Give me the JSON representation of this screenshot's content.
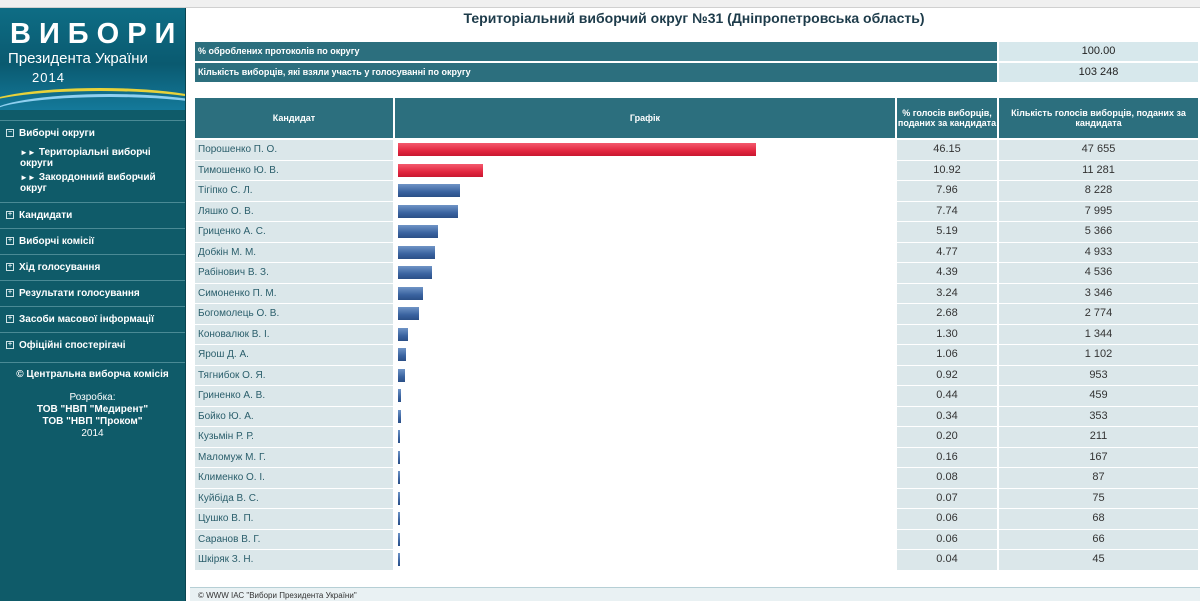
{
  "logo": {
    "title": "ВИБОРИ",
    "subtitle": "Президента України",
    "year": "2014"
  },
  "sidebar": {
    "items": [
      {
        "label": "Виборчі округи",
        "expanded": true,
        "children": [
          "Територіальні виборчі округи",
          "Закордонний виборчий округ"
        ]
      },
      {
        "label": "Кандидати"
      },
      {
        "label": "Виборчі комісії"
      },
      {
        "label": "Хід голосування"
      },
      {
        "label": "Результати голосування"
      },
      {
        "label": "Засоби масової інформації"
      },
      {
        "label": "Офіційні спостерігачі"
      }
    ],
    "copyright": "© Центральна виборча комісія",
    "dev_label": "Розробка:",
    "dev1": "ТОВ \"НВП \"Медирент\"",
    "dev2": "ТОВ \"НВП \"Проком\"",
    "dev_year": "2014"
  },
  "page_title": "Територіальний виборчий округ №31 (Дніпропетровська область)",
  "summary": {
    "protocols_label": "% оброблених протоколів по округу",
    "protocols_value": "100.00",
    "voters_label": "Кількість виборців, які взяли участь у голосуванні по округу",
    "voters_value": "103 248"
  },
  "table": {
    "headers": {
      "candidate": "Кандидат",
      "chart": "Графік",
      "percent": "% голосів виборців, поданих за кандидата",
      "votes": "Кількість голосів виборців, поданих за кандидата"
    },
    "bar_colors": {
      "top": "#e2263f",
      "other": "#3a63a0"
    },
    "rows": [
      {
        "name": "Порошенко П. О.",
        "percent": "46.15",
        "votes": "47 655",
        "share": 46.15,
        "top": true
      },
      {
        "name": "Тимошенко Ю. В.",
        "percent": "10.92",
        "votes": "11 281",
        "share": 10.92,
        "top": true
      },
      {
        "name": "Тігіпко С. Л.",
        "percent": "7.96",
        "votes": "8 228",
        "share": 7.96
      },
      {
        "name": "Ляшко О. В.",
        "percent": "7.74",
        "votes": "7 995",
        "share": 7.74
      },
      {
        "name": "Гриценко А. С.",
        "percent": "5.19",
        "votes": "5 366",
        "share": 5.19
      },
      {
        "name": "Добкін М. М.",
        "percent": "4.77",
        "votes": "4 933",
        "share": 4.77
      },
      {
        "name": "Рабінович В. З.",
        "percent": "4.39",
        "votes": "4 536",
        "share": 4.39
      },
      {
        "name": "Симоненко П. М.",
        "percent": "3.24",
        "votes": "3 346",
        "share": 3.24
      },
      {
        "name": "Богомолець О. В.",
        "percent": "2.68",
        "votes": "2 774",
        "share": 2.68
      },
      {
        "name": "Коновалюк В. І.",
        "percent": "1.30",
        "votes": "1 344",
        "share": 1.3
      },
      {
        "name": "Ярош Д. А.",
        "percent": "1.06",
        "votes": "1 102",
        "share": 1.06
      },
      {
        "name": "Тягнибок О. Я.",
        "percent": "0.92",
        "votes": "953",
        "share": 0.92
      },
      {
        "name": "Гриненко А. В.",
        "percent": "0.44",
        "votes": "459",
        "share": 0.44
      },
      {
        "name": "Бойко Ю. А.",
        "percent": "0.34",
        "votes": "353",
        "share": 0.34
      },
      {
        "name": "Кузьмін Р. Р.",
        "percent": "0.20",
        "votes": "211",
        "share": 0.2
      },
      {
        "name": "Маломуж М. Г.",
        "percent": "0.16",
        "votes": "167",
        "share": 0.16
      },
      {
        "name": "Клименко О. І.",
        "percent": "0.08",
        "votes": "87",
        "share": 0.08
      },
      {
        "name": "Куйбіда В. С.",
        "percent": "0.07",
        "votes": "75",
        "share": 0.07
      },
      {
        "name": "Цушко В. П.",
        "percent": "0.06",
        "votes": "68",
        "share": 0.06
      },
      {
        "name": "Саранов В. Г.",
        "percent": "0.06",
        "votes": "66",
        "share": 0.06
      },
      {
        "name": "Шкіряк З. Н.",
        "percent": "0.04",
        "votes": "45",
        "share": 0.04
      }
    ]
  },
  "footer": "© WWW ІАС \"Вибори Президента України\""
}
